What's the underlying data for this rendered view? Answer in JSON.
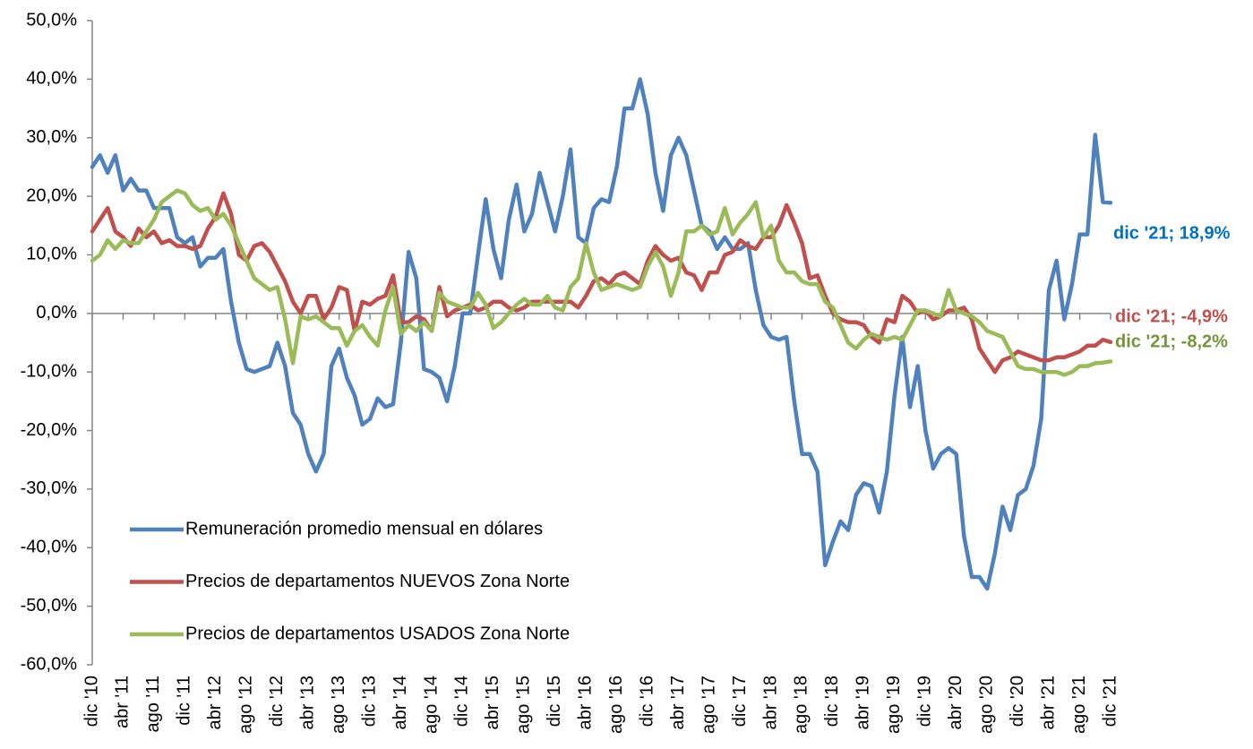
{
  "chart_data": {
    "type": "line",
    "categories": [
      "dic '10",
      null,
      null,
      null,
      "abr '11",
      null,
      null,
      null,
      "ago '11",
      null,
      null,
      null,
      "dic '11",
      null,
      null,
      null,
      "abr '12",
      null,
      null,
      null,
      "ago '12",
      null,
      null,
      null,
      "dic '12",
      null,
      null,
      null,
      "abr '13",
      null,
      null,
      null,
      "ago '13",
      null,
      null,
      null,
      "dic '13",
      null,
      null,
      null,
      "abr '14",
      null,
      null,
      null,
      "ago '14",
      null,
      null,
      null,
      "dic '14",
      null,
      null,
      null,
      "abr '15",
      null,
      null,
      null,
      "ago '15",
      null,
      null,
      null,
      "dic '15",
      null,
      null,
      null,
      "abr '16",
      null,
      null,
      null,
      "ago '16",
      null,
      null,
      null,
      "dic '16",
      null,
      null,
      null,
      "abr '17",
      null,
      null,
      null,
      "ago '17",
      null,
      null,
      null,
      "dic '17",
      null,
      null,
      null,
      "abr '18",
      null,
      null,
      null,
      "ago '18",
      null,
      null,
      null,
      "dic '18",
      null,
      null,
      null,
      "abr '19",
      null,
      null,
      null,
      "ago '19",
      null,
      null,
      null,
      "dic '19",
      null,
      null,
      null,
      "abr '20",
      null,
      null,
      null,
      "ago '20",
      null,
      null,
      null,
      "dic '20",
      null,
      null,
      null,
      "abr '21",
      null,
      null,
      null,
      "ago '21",
      null,
      null,
      null,
      "dic '21"
    ],
    "series": [
      {
        "name": "Remuneración promedio mensual en dólares",
        "color": "#4f81bd",
        "label_color": "#0070c0",
        "end_label": "dic '21; 18,9%",
        "values": [
          25,
          27,
          24,
          27,
          21,
          23,
          21,
          21,
          18,
          18,
          18,
          13,
          12,
          13,
          8,
          9.5,
          9.5,
          11,
          2,
          -5,
          -9.5,
          -10,
          -9.5,
          -9,
          -5,
          -9,
          -17,
          -19,
          -24,
          -27,
          -24,
          -9,
          -6,
          -11,
          -14,
          -19,
          -18,
          -14.5,
          -16,
          -15.5,
          -5,
          10.5,
          6,
          -9.5,
          -10,
          -11,
          -15,
          -9,
          0,
          0,
          10,
          19.5,
          11,
          6,
          16,
          22,
          14,
          17,
          24,
          19,
          14,
          20,
          28,
          13,
          12,
          18,
          19.5,
          19,
          25,
          35,
          35,
          40,
          34,
          24,
          17.5,
          27,
          30,
          27,
          21,
          15,
          14,
          11,
          13,
          11,
          11,
          12,
          4,
          -2,
          -4,
          -4.5,
          -4,
          -15,
          -24,
          -24,
          -27,
          -43,
          -39,
          -35.5,
          -37,
          -31,
          -29,
          -29.5,
          -34,
          -27,
          -14,
          -4,
          -16,
          -9,
          -20,
          -26.5,
          -24,
          -23,
          -24,
          -38,
          -45,
          -45,
          -47,
          -41,
          -33,
          -37,
          -31,
          -30,
          -26,
          -18,
          4,
          9,
          -1,
          5,
          13.5,
          13.5,
          30.5,
          19,
          18.9
        ]
      },
      {
        "name": "Precios de departamentos NUEVOS Zona Norte",
        "color": "#c0504d",
        "label_color": "#c0504d",
        "end_label": "dic '21; -4,9%",
        "values": [
          14,
          16,
          18,
          14,
          13,
          11.5,
          14.5,
          13,
          14,
          12,
          12.5,
          11.5,
          11.5,
          11,
          11.5,
          14.5,
          16.5,
          20.5,
          17,
          10,
          9,
          11.5,
          12,
          10.5,
          8,
          5.5,
          2,
          0,
          3,
          3,
          -1,
          1,
          4.5,
          4,
          -3,
          2,
          1.5,
          2.5,
          3,
          6.5,
          -1.5,
          -1.5,
          -0.5,
          -1,
          -3,
          4.5,
          -0.5,
          0.5,
          1,
          1.5,
          0.5,
          1,
          2,
          2,
          1,
          0.5,
          1,
          2,
          2,
          2,
          2,
          2,
          2,
          1,
          3,
          5.5,
          6,
          5,
          6.5,
          7,
          6,
          5,
          9,
          11.5,
          10,
          9,
          9.5,
          7,
          6.5,
          4,
          7,
          7,
          10,
          10.5,
          12.5,
          11.5,
          11,
          13,
          13,
          15,
          18.5,
          15.5,
          12,
          6,
          6.5,
          3,
          0,
          -1,
          -1.5,
          -1.5,
          -2,
          -4,
          -5,
          -1,
          -1.5,
          3,
          2,
          0,
          0.5,
          -1,
          -0.5,
          0.5,
          0.5,
          1,
          -1,
          -6,
          -8,
          -10,
          -8,
          -7.5,
          -6.5,
          -7,
          -7.5,
          -8,
          -8,
          -7.5,
          -7.5,
          -7,
          -6.5,
          -5.5,
          -5.5,
          -4.5,
          -4.9
        ]
      },
      {
        "name": "Precios de departamentos USADOS Zona Norte",
        "color": "#9bbb59",
        "label_color": "#77933c",
        "end_label": "dic '21; -8,2%",
        "values": [
          9,
          10,
          12.5,
          11,
          12.5,
          12,
          12,
          14,
          16,
          19,
          20,
          21,
          20.5,
          18.5,
          17.5,
          18,
          16,
          17,
          15,
          12,
          9,
          6,
          5,
          4,
          4.5,
          -1,
          -8.5,
          -0.5,
          -1,
          -0.5,
          -1.5,
          -2.5,
          -2.5,
          -5.5,
          -3,
          -2,
          -4,
          -5.5,
          0.5,
          4.5,
          -3.5,
          -2,
          -3,
          -1.5,
          -3,
          3.5,
          2,
          1.5,
          1,
          1,
          3.5,
          1.5,
          -2.5,
          -1.5,
          0,
          1.5,
          2.5,
          1.5,
          1.5,
          3,
          1,
          0.5,
          4.5,
          6,
          12,
          7,
          4,
          4.5,
          5,
          4.5,
          4,
          4.5,
          8,
          10.5,
          8,
          3,
          7,
          14,
          14,
          15,
          13.5,
          14,
          18,
          13.5,
          15.5,
          17,
          19,
          13,
          15,
          9,
          7,
          7,
          5.5,
          5,
          5,
          2,
          1,
          -2,
          -5,
          -6,
          -4.5,
          -3.5,
          -4,
          -4.5,
          -4,
          -4.5,
          -2,
          0.5,
          0.5,
          0,
          -0.5,
          4,
          0.5,
          0,
          -0.5,
          -1.5,
          -3,
          -3.5,
          -4,
          -6.5,
          -9,
          -9.5,
          -9.5,
          -10,
          -10,
          -10,
          -10.5,
          -10,
          -9,
          -9,
          -8.5,
          -8.4,
          -8.2
        ]
      }
    ],
    "ylim": [
      -60,
      50
    ],
    "yticks": [
      {
        "value": -60,
        "label": "-60,0%"
      },
      {
        "value": -50,
        "label": "-50,0%"
      },
      {
        "value": -40,
        "label": "-40,0%"
      },
      {
        "value": -30,
        "label": "-30,0%"
      },
      {
        "value": -20,
        "label": "-20,0%"
      },
      {
        "value": -10,
        "label": "-10,0%"
      },
      {
        "value": 0,
        "label": "0,0%"
      },
      {
        "value": 10,
        "label": "10,0%"
      },
      {
        "value": 20,
        "label": "20,0%"
      },
      {
        "value": 30,
        "label": "30,0%"
      },
      {
        "value": 40,
        "label": "40,0%"
      },
      {
        "value": 50,
        "label": "50,0%"
      }
    ],
    "grid": false
  }
}
